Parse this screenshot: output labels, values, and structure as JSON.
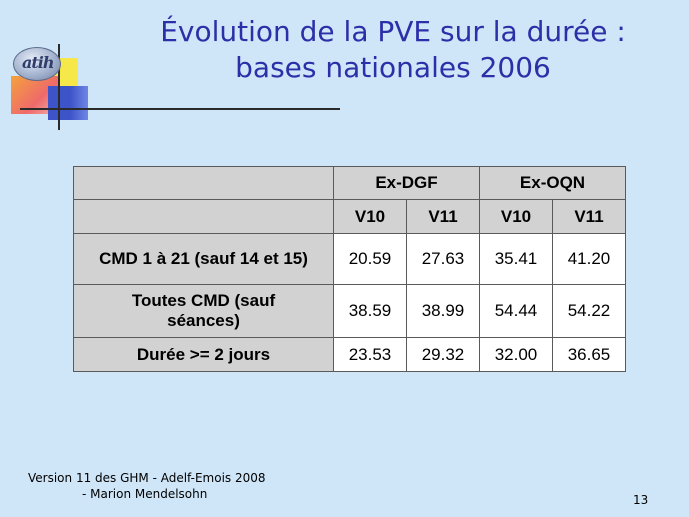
{
  "slide": {
    "logo_text": "atih",
    "title_line1": "Évolution de la PVE sur la durée :",
    "title_line2": "bases nationales 2006",
    "footer_line1": "Version 11 des GHM - Adelf-Emois 2008",
    "footer_line2": "- Marion Mendelsohn",
    "page_number": "13"
  },
  "table": {
    "group_headers": [
      "Ex-DGF",
      "Ex-OQN"
    ],
    "sub_headers": [
      "V10",
      "V11",
      "V10",
      "V11"
    ],
    "rows": [
      {
        "label": "CMD 1 à 21 (sauf 14 et 15)",
        "values": [
          "20.59",
          "27.63",
          "35.41",
          "41.20"
        ]
      },
      {
        "label": "Toutes CMD (sauf séances)",
        "values": [
          "38.59",
          "38.99",
          "54.44",
          "54.22"
        ]
      },
      {
        "label": "Durée >= 2 jours",
        "values": [
          "23.53",
          "29.32",
          "32.00",
          "36.65"
        ]
      }
    ]
  },
  "colors": {
    "background": "#cfe6f8",
    "title": "#2d2fa8",
    "header_fill": "#d2d2d2"
  }
}
